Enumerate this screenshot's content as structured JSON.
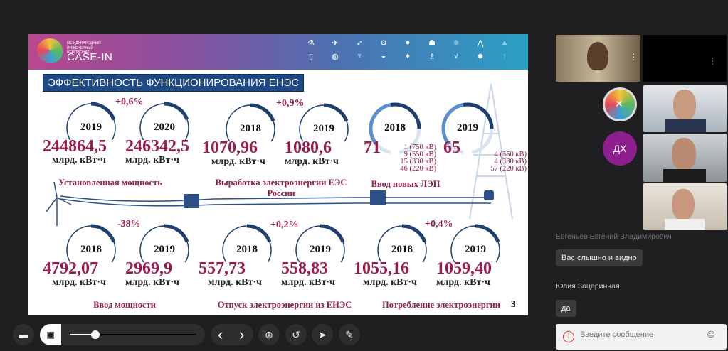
{
  "slide": {
    "logo": {
      "top": "МЕЖДУНАРОДНЫЙ",
      "sub": "ИНЖЕНЕРНЫЙ ЧЕМПИОНАТ",
      "name": "CASE-IN"
    },
    "title": "ЭФФЕКТИВНОСТЬ ФУНКЦИОНИРОВАНИЯ ЕНЭС",
    "header_icons": [
      "flask-icon",
      "satellite-icon",
      "rocket-icon",
      "gears-icon",
      "chat-icon",
      "team-icon",
      "atom-icon",
      "compass-icon",
      "graduation-icon",
      "phone-icon",
      "globe-icon",
      "trophy-icon",
      "helmet-icon",
      "drop-icon",
      "tower-icon",
      "sqrt-icon",
      "gear-icon",
      "arrow-up-icon"
    ],
    "page_number": "3",
    "groups": [
      {
        "caption": "Установленная мощность",
        "change": "+0,6%",
        "items": [
          {
            "year": "2019",
            "value": "244864,5",
            "unit": "млрд. кВт·ч"
          },
          {
            "year": "2020",
            "value": "246342,5",
            "unit": "млрд. кВт·ч"
          }
        ]
      },
      {
        "caption": "Выработка электроэнергии ЕЭС России",
        "change": "+0,9%",
        "items": [
          {
            "year": "2018",
            "value": "1070,96",
            "unit": "млрд. кВт·ч"
          },
          {
            "year": "2019",
            "value": "1080,6",
            "unit": "млрд. кВт·ч"
          }
        ]
      },
      {
        "caption": "Ввод новых ЛЭП",
        "items": [
          {
            "year": "2018",
            "value": "71",
            "breakdown": [
              "1 (750 кВ)",
              "9 (550 кВ)",
              "15 (330 кВ)",
              "46 (220 кВ)"
            ]
          },
          {
            "year": "2019",
            "value": "65",
            "breakdown": [
              "4 (550 кВ)",
              "4 (330 кВ)",
              "57 (220 кВ)"
            ]
          }
        ]
      },
      {
        "caption": "Ввод мощности",
        "change": "-38%",
        "items": [
          {
            "year": "2018",
            "value": "4792,07",
            "unit": "млрд. кВт·ч"
          },
          {
            "year": "2019",
            "value": "2969,9",
            "unit": "млрд. кВт·ч"
          }
        ]
      },
      {
        "caption": "Отпуск электроэнергии из ЕНЭС",
        "change": "+0,2%",
        "items": [
          {
            "year": "2018",
            "value": "557,73",
            "unit": "млрд. кВт·ч"
          },
          {
            "year": "2019",
            "value": "558,83",
            "unit": "млрд. кВт·ч"
          }
        ]
      },
      {
        "caption": "Потребление электроэнергии",
        "change": "+0,4%",
        "items": [
          {
            "year": "2018",
            "value": "1055,16",
            "unit": "млрд. кВт·ч"
          },
          {
            "year": "2019",
            "value": "1059,40",
            "unit": "млрд. кВт·ч"
          }
        ]
      }
    ]
  },
  "participants": {
    "avatar_initials": "ДХ",
    "avatar_color": "#8e1f8f"
  },
  "chat": {
    "messages": [
      {
        "author": "Евгеньев Евгений Владимирович",
        "text": "Вас слышно и видно"
      },
      {
        "author": "Юлия Зацаринная",
        "text": "да"
      }
    ],
    "input_placeholder": "Введите сообщение"
  },
  "toolbar": {
    "slider_progress": 0.2,
    "prev": "‹",
    "next": "›"
  }
}
